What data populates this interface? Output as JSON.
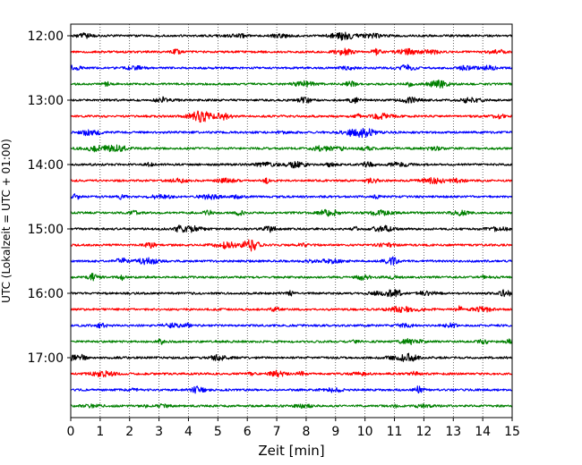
{
  "chart_data": {
    "type": "line",
    "title": "",
    "xlabel": "Zeit  [min]",
    "ylabel": "UTC (Lokalzeit = UTC + 01:00)",
    "xlim": [
      0,
      15
    ],
    "x_ticks": [
      0,
      1,
      2,
      3,
      4,
      5,
      6,
      7,
      8,
      9,
      10,
      11,
      12,
      13,
      14,
      15
    ],
    "x_tick_labels": [
      "0",
      "1",
      "2",
      "3",
      "4",
      "5",
      "6",
      "7",
      "8",
      "9",
      "10",
      "11",
      "12",
      "13",
      "14",
      "15"
    ],
    "y_tick_labels": [
      "12:00",
      "13:00",
      "14:00",
      "15:00",
      "16:00",
      "17:00"
    ],
    "y_tick_rows": [
      0,
      4,
      8,
      12,
      16,
      20
    ],
    "grid": "vertical dotted lines at each minute",
    "trace_colors": [
      "#000000",
      "#ff0000",
      "#0000ff",
      "#008000"
    ],
    "traces": [
      {
        "start": "12:00",
        "color": "#000000"
      },
      {
        "start": "12:15",
        "color": "#ff0000"
      },
      {
        "start": "12:30",
        "color": "#0000ff"
      },
      {
        "start": "12:45",
        "color": "#008000"
      },
      {
        "start": "13:00",
        "color": "#000000"
      },
      {
        "start": "13:15",
        "color": "#ff0000"
      },
      {
        "start": "13:30",
        "color": "#0000ff"
      },
      {
        "start": "13:45",
        "color": "#008000"
      },
      {
        "start": "14:00",
        "color": "#000000"
      },
      {
        "start": "14:15",
        "color": "#ff0000"
      },
      {
        "start": "14:30",
        "color": "#0000ff"
      },
      {
        "start": "14:45",
        "color": "#008000"
      },
      {
        "start": "15:00",
        "color": "#000000"
      },
      {
        "start": "15:15",
        "color": "#ff0000"
      },
      {
        "start": "15:30",
        "color": "#0000ff"
      },
      {
        "start": "15:45",
        "color": "#008000"
      },
      {
        "start": "16:00",
        "color": "#000000"
      },
      {
        "start": "16:15",
        "color": "#ff0000"
      },
      {
        "start": "16:30",
        "color": "#0000ff"
      },
      {
        "start": "16:45",
        "color": "#008000"
      },
      {
        "start": "17:00",
        "color": "#000000"
      },
      {
        "start": "17:15",
        "color": "#ff0000"
      },
      {
        "start": "17:30",
        "color": "#0000ff"
      },
      {
        "start": "17:45",
        "color": "#008000"
      }
    ]
  }
}
